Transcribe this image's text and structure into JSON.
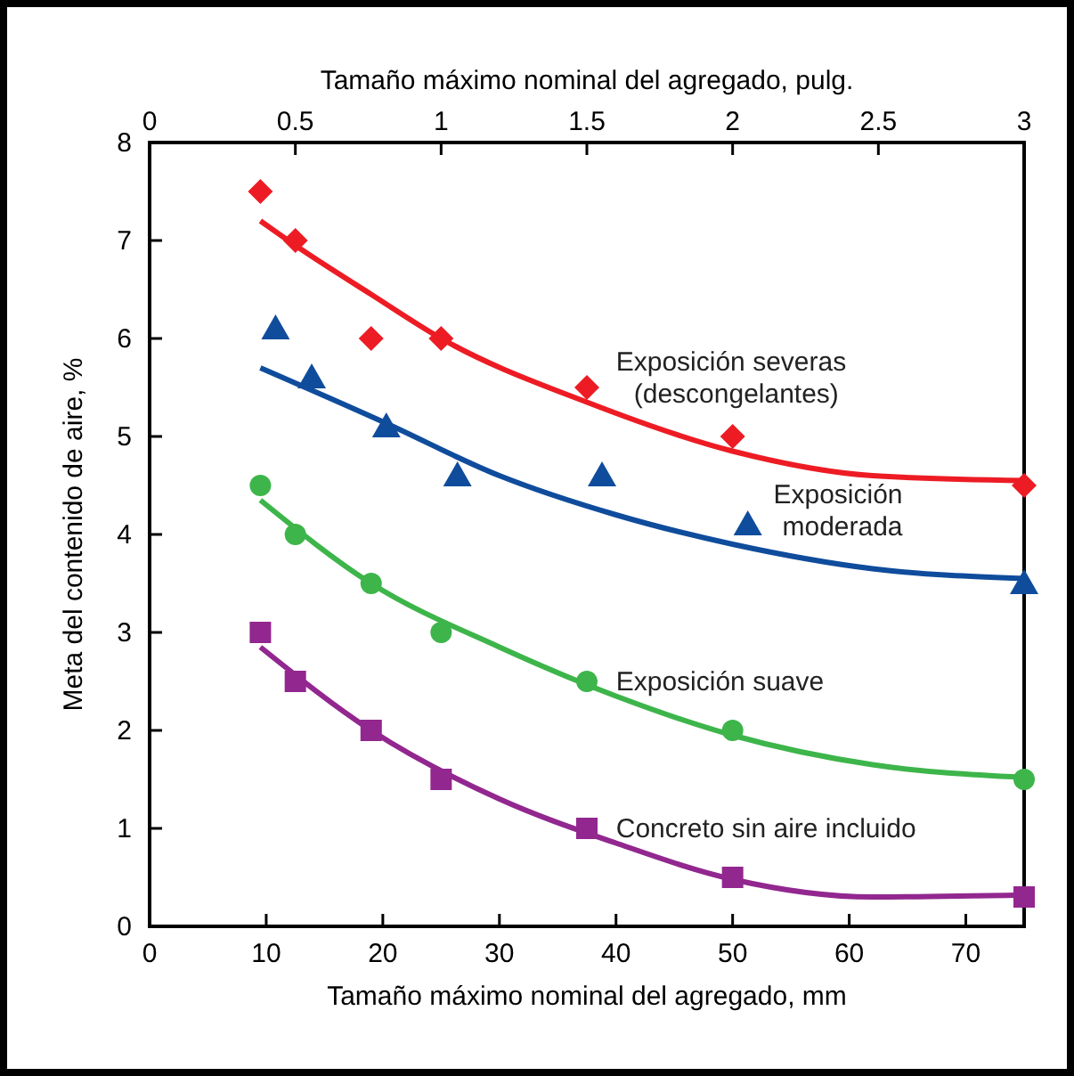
{
  "chart_data": {
    "type": "scatter",
    "xlabel": "Tamaño máximo nominal del agregado, mm",
    "ylabel": "Meta del contenido de aire, %",
    "x2label": "Tamaño máximo nominal del agregado, pulg.",
    "xlim": [
      0,
      75
    ],
    "xticks": [
      0,
      10,
      20,
      30,
      40,
      50,
      60,
      70
    ],
    "ylim": [
      0,
      8
    ],
    "yticks": [
      0,
      1,
      2,
      3,
      4,
      5,
      6,
      7,
      8
    ],
    "x2lim": [
      0,
      3
    ],
    "x2ticks": [
      0,
      0.5,
      1,
      1.5,
      2,
      2.5,
      3
    ],
    "grid": false,
    "series": [
      {
        "name": "Exposición severas\n(descongelantes)",
        "color": "#ed1c24",
        "marker": "diamond",
        "x": [
          9.5,
          12.5,
          19,
          25,
          37.5,
          50,
          75
        ],
        "values": [
          7.5,
          7.0,
          6.0,
          6.0,
          5.5,
          5.0,
          4.5
        ]
      },
      {
        "name": "Exposición\nmoderada",
        "color": "#0f4c9c",
        "marker": "triangle",
        "x": [
          10.8,
          13.9,
          20.3,
          26.4,
          38.8,
          51.3,
          75
        ],
        "values": [
          6.1,
          5.6,
          5.1,
          4.6,
          4.6,
          4.1,
          3.5
        ]
      },
      {
        "name": "Exposición suave",
        "color": "#3db54a",
        "marker": "circle",
        "x": [
          9.5,
          12.5,
          19,
          25,
          37.5,
          50,
          75
        ],
        "values": [
          4.5,
          4.0,
          3.5,
          3.0,
          2.5,
          2.0,
          1.5
        ]
      },
      {
        "name": "Concreto sin aire incluido",
        "color": "#92278f",
        "marker": "square",
        "x": [
          9.5,
          12.5,
          19,
          25,
          37.5,
          50,
          75
        ],
        "values": [
          3.0,
          2.5,
          2.0,
          1.5,
          1.0,
          0.5,
          0.3
        ]
      },
      {
        "type": "line",
        "color": "#ed1c24",
        "x": [
          9.5,
          12.5,
          19,
          25,
          37.5,
          50,
          62,
          75
        ],
        "values": [
          7.2,
          6.95,
          6.45,
          6.0,
          5.35,
          4.85,
          4.6,
          4.55
        ]
      },
      {
        "type": "line",
        "color": "#0f4c9c",
        "x": [
          9.5,
          20,
          30,
          40,
          50,
          62,
          75
        ],
        "values": [
          5.7,
          5.15,
          4.6,
          4.2,
          3.9,
          3.65,
          3.55
        ]
      },
      {
        "type": "line",
        "color": "#3db54a",
        "x": [
          9.5,
          19,
          30,
          40,
          50,
          62,
          75
        ],
        "values": [
          4.35,
          3.5,
          2.85,
          2.35,
          1.95,
          1.65,
          1.52
        ]
      },
      {
        "type": "line",
        "color": "#92278f",
        "x": [
          9.5,
          19,
          30,
          40,
          50,
          62,
          75
        ],
        "values": [
          2.85,
          2.0,
          1.3,
          0.85,
          0.48,
          0.3,
          0.32
        ]
      }
    ]
  }
}
